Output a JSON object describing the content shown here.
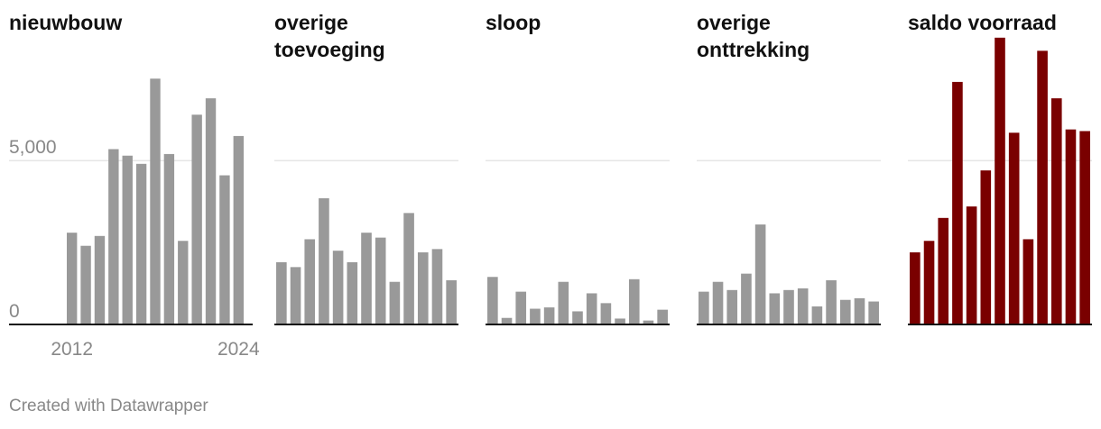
{
  "footer": "Created with Datawrapper",
  "colors": {
    "gray_bar": "#999999",
    "accent_bar": "#7a0000",
    "grid": "#dddddd",
    "baseline": "#111111",
    "axis_text": "#888888"
  },
  "chart_data": [
    {
      "type": "bar",
      "title": "nieuwbouw",
      "x": [
        2012,
        2013,
        2014,
        2015,
        2016,
        2017,
        2018,
        2019,
        2020,
        2021,
        2022,
        2023,
        2024
      ],
      "values": [
        2800,
        2400,
        2700,
        5350,
        5150,
        4900,
        7500,
        5200,
        2550,
        6400,
        6900,
        4550,
        5750
      ],
      "x_tick_labels": [
        "2012",
        "2024"
      ],
      "y_ticks": [
        0,
        5000
      ],
      "y_tick_labels": [
        "0",
        "5,000"
      ],
      "ylim": [
        0,
        8800
      ],
      "color": "gray",
      "grid": true
    },
    {
      "type": "bar",
      "title": "overige toevoeging",
      "x": [
        2012,
        2013,
        2014,
        2015,
        2016,
        2017,
        2018,
        2019,
        2020,
        2021,
        2022,
        2023,
        2024
      ],
      "values": [
        1900,
        1750,
        2600,
        3850,
        2250,
        1900,
        2800,
        2650,
        1300,
        3400,
        2200,
        2300,
        1350
      ],
      "ylim": [
        0,
        8800
      ],
      "color": "gray",
      "grid": true
    },
    {
      "type": "bar",
      "title": "sloop",
      "x": [
        2012,
        2013,
        2014,
        2015,
        2016,
        2017,
        2018,
        2019,
        2020,
        2021,
        2022,
        2023,
        2024
      ],
      "values": [
        1450,
        200,
        1000,
        480,
        520,
        1300,
        400,
        950,
        650,
        180,
        1380,
        120,
        450
      ],
      "ylim": [
        0,
        8800
      ],
      "color": "gray",
      "grid": true
    },
    {
      "type": "bar",
      "title": "overige onttrekking",
      "x": [
        2012,
        2013,
        2014,
        2015,
        2016,
        2017,
        2018,
        2019,
        2020,
        2021,
        2022,
        2023,
        2024
      ],
      "values": [
        1000,
        1300,
        1050,
        1550,
        3050,
        950,
        1050,
        1100,
        550,
        1350,
        750,
        800,
        700
      ],
      "ylim": [
        0,
        8800
      ],
      "color": "gray",
      "grid": true
    },
    {
      "type": "bar",
      "title": "saldo voorraad",
      "x": [
        2012,
        2013,
        2014,
        2015,
        2016,
        2017,
        2018,
        2019,
        2020,
        2021,
        2022,
        2023,
        2024
      ],
      "values": [
        2200,
        2550,
        3250,
        7400,
        3600,
        4700,
        8750,
        5850,
        2600,
        8350,
        6900,
        5950,
        5900
      ],
      "ylim": [
        0,
        8800
      ],
      "color": "accent",
      "grid": true
    }
  ]
}
